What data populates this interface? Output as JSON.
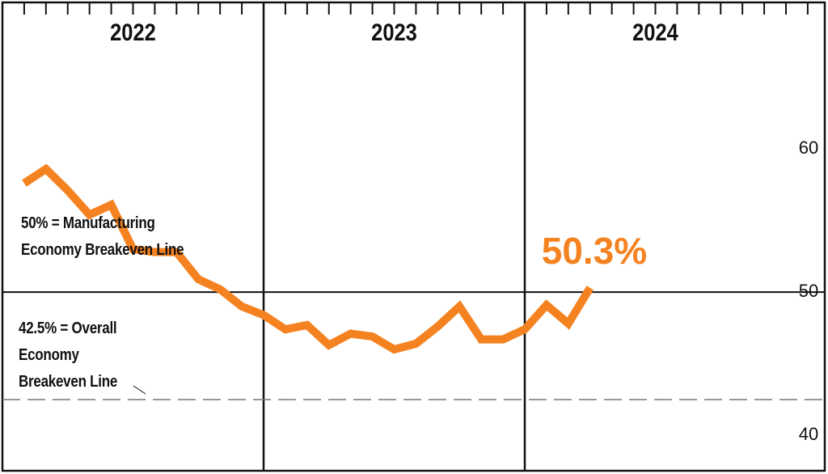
{
  "chart_data": {
    "type": "line",
    "year_labels": [
      "2022",
      "2023",
      "2024"
    ],
    "categories": [
      null,
      null,
      null,
      null,
      null,
      null,
      null,
      null,
      null,
      null,
      null,
      null,
      null,
      null,
      null,
      null,
      null,
      null,
      null,
      null,
      null,
      null,
      null,
      null,
      null,
      null,
      null
    ],
    "series": [
      {
        "name": null,
        "color": "#f58220",
        "values": [
          57.6,
          58.6,
          57.1,
          55.4,
          56.1,
          53.0,
          52.8,
          52.8,
          50.9,
          50.2,
          49.0,
          48.4,
          47.4,
          47.7,
          46.3,
          47.1,
          46.9,
          46.0,
          46.4,
          47.6,
          49.0,
          46.7,
          46.7,
          47.4,
          49.1,
          47.8,
          50.3
        ],
        "value_labels": [
          null,
          null,
          null,
          null,
          null,
          null,
          null,
          null,
          null,
          null,
          null,
          null,
          null,
          null,
          null,
          null,
          null,
          null,
          null,
          null,
          null,
          null,
          null,
          null,
          null,
          null,
          "50.3%"
        ]
      }
    ],
    "ylim": [
      37.3,
      70.4
    ],
    "yticks": [
      40,
      50,
      60
    ],
    "reference_lines": [
      {
        "value": 50,
        "label": "50% = Manufacturing Economy Breakeven Line",
        "style": "solid"
      },
      {
        "value": 42.5,
        "label": "42.5% = Overall Economy Breakeven Line",
        "style": "dashed"
      }
    ]
  }
}
